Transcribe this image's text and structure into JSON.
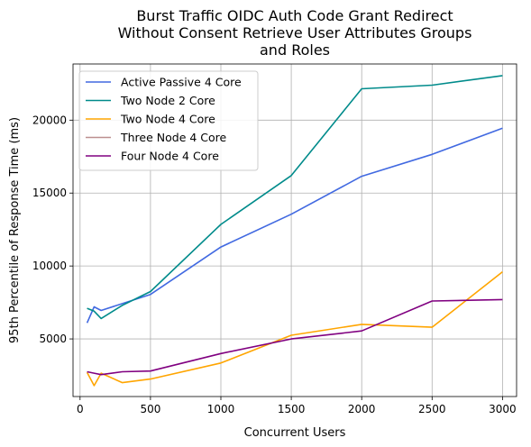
{
  "chart_data": {
    "type": "line",
    "title": "Burst Traffic OIDC Auth Code Grant Redirect\nWithout Consent Retrieve User Attributes Groups\nand Roles",
    "xlabel": "Concurrent Users",
    "ylabel": "95th Percentile of Response Time (ms)",
    "xlim": [
      -50,
      3100
    ],
    "ylim": [
      1050,
      23850
    ],
    "xticks": [
      0,
      500,
      1000,
      1500,
      2000,
      2500,
      3000
    ],
    "yticks": [
      5000,
      10000,
      15000,
      20000
    ],
    "grid": true,
    "legend_position": "top-left",
    "series": [
      {
        "name": "Active Passive 4 Core",
        "color": "#4169E1",
        "x": [
          50,
          100,
          150,
          500,
          1000,
          1500,
          2000,
          2500,
          3000
        ],
        "y": [
          6100,
          7200,
          6950,
          8050,
          11300,
          13550,
          16150,
          17650,
          19450
        ]
      },
      {
        "name": "Two Node 2 Core",
        "color": "#008B8B",
        "x": [
          50,
          100,
          150,
          300,
          500,
          1000,
          1500,
          2000,
          2500,
          3000
        ],
        "y": [
          7100,
          6900,
          6400,
          7300,
          8250,
          12850,
          16200,
          22150,
          22400,
          23050
        ]
      },
      {
        "name": "Two Node 4 Core",
        "color": "#FFA500",
        "x": [
          50,
          100,
          150,
          300,
          500,
          1000,
          1500,
          2000,
          2500,
          3000
        ],
        "y": [
          2700,
          1800,
          2650,
          2000,
          2250,
          3350,
          5250,
          6000,
          5800,
          9600
        ]
      },
      {
        "name": "Three Node 4 Core",
        "color": "#BC8F8F",
        "x": [],
        "y": []
      },
      {
        "name": "Four Node 4 Core",
        "color": "#800080",
        "x": [
          50,
          100,
          150,
          300,
          500,
          1000,
          1500,
          2000,
          2500,
          3000
        ],
        "y": [
          2750,
          2650,
          2550,
          2750,
          2800,
          4000,
          5000,
          5550,
          7600,
          7700
        ]
      }
    ]
  }
}
